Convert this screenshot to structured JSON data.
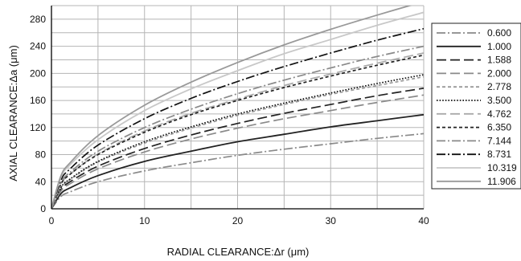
{
  "chart_data": {
    "type": "line",
    "xlabel": "RADIAL CLEARANCE:Δr (μm)",
    "ylabel": "AXIAL CLEARANCE:Δa (μm)",
    "xlim": [
      0,
      40
    ],
    "ylim": [
      0,
      300
    ],
    "x_ticks": [
      0,
      10,
      20,
      30,
      40
    ],
    "y_ticks": [
      0,
      40,
      80,
      120,
      160,
      200,
      240,
      280
    ],
    "grid": true,
    "legend_position": "right",
    "x": [
      0,
      1,
      2,
      5,
      10,
      15,
      20,
      25,
      30,
      35,
      40
    ],
    "series": [
      {
        "name": "0.600",
        "color": "#8a8a8a",
        "dash": "dashdot",
        "values": [
          0,
          18,
          25,
          40,
          56,
          68,
          79,
          88,
          96,
          104,
          111
        ]
      },
      {
        "name": "1.000",
        "color": "#222222",
        "dash": "solid",
        "values": [
          0,
          22,
          31,
          49,
          70,
          85,
          99,
          110,
          121,
          130,
          139
        ]
      },
      {
        "name": "1.588",
        "color": "#222222",
        "dash": "longdash",
        "values": [
          0,
          28,
          40,
          63,
          89,
          109,
          126,
          141,
          154,
          167,
          178
        ]
      },
      {
        "name": "2.000",
        "color": "#8a8a8a",
        "dash": "longdash",
        "values": [
          0,
          26,
          37,
          59,
          84,
          103,
          119,
          133,
          145,
          157,
          168
        ]
      },
      {
        "name": "2.778",
        "color": "#999999",
        "dash": "shortdash",
        "values": [
          0,
          31,
          43,
          69,
          97,
          119,
          138,
          154,
          169,
          182,
          195
        ]
      },
      {
        "name": "3.500",
        "color": "#111111",
        "dash": "dotted",
        "values": [
          0,
          31,
          44,
          70,
          99,
          121,
          140,
          156,
          171,
          185,
          198
        ]
      },
      {
        "name": "4.762",
        "color": "#aaaaaa",
        "dash": "longdash",
        "values": [
          0,
          36,
          51,
          81,
          115,
          141,
          162,
          182,
          199,
          215,
          230
        ]
      },
      {
        "name": "6.350",
        "color": "#222222",
        "dash": "shortdash",
        "values": [
          0,
          36,
          51,
          80,
          113,
          139,
          160,
          179,
          196,
          212,
          227
        ]
      },
      {
        "name": "7.144",
        "color": "#8a8a8a",
        "dash": "dashdot",
        "values": [
          0,
          38,
          54,
          85,
          120,
          147,
          170,
          190,
          208,
          225,
          240
        ]
      },
      {
        "name": "8.731",
        "color": "#111111",
        "dash": "dashdot",
        "values": [
          0,
          42,
          59,
          94,
          133,
          163,
          188,
          210,
          230,
          249,
          266
        ]
      },
      {
        "name": "10.319",
        "color": "#c8c8c8",
        "dash": "solid",
        "values": [
          0,
          46,
          65,
          102,
          145,
          177,
          204,
          229,
          250,
          271,
          290
        ]
      },
      {
        "name": "11.906",
        "color": "#999999",
        "dash": "solid",
        "values": [
          0,
          48,
          68,
          108,
          153,
          187,
          216,
          242,
          265,
          286,
          306
        ]
      }
    ]
  }
}
